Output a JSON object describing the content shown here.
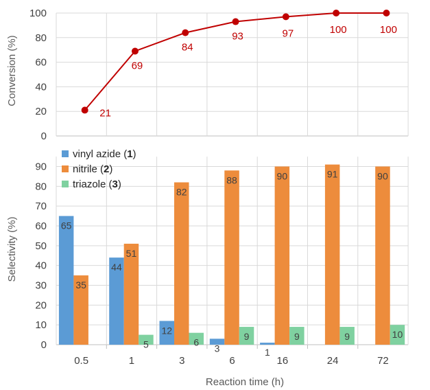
{
  "colors": {
    "conversion": "#c00000",
    "vinyl_azide": "#5b9bd5",
    "nitrile": "#ed8c3c",
    "triazole": "#7fd1a0",
    "bar_label_text": "#404040",
    "grid": "#d9d9d9"
  },
  "chart_data": [
    {
      "type": "line",
      "title": "",
      "xlabel": "",
      "ylabel": "Conversion (%)",
      "ylim": [
        0,
        100
      ],
      "yticks": [
        0,
        20,
        40,
        60,
        80,
        100
      ],
      "grid": true,
      "categories": [
        "0.5",
        "1",
        "3",
        "6",
        "16",
        "24",
        "72"
      ],
      "series": [
        {
          "key": "conversion",
          "values": [
            21,
            69,
            84,
            93,
            97,
            100,
            100
          ]
        }
      ]
    },
    {
      "type": "bar",
      "title": "",
      "xlabel": "Reaction time (h)",
      "ylabel": "Selectivity (%)",
      "ylim": [
        0,
        95
      ],
      "yticks": [
        0,
        10,
        20,
        30,
        40,
        50,
        60,
        70,
        80,
        90
      ],
      "grid": true,
      "legend": "top-left",
      "categories": [
        "0.5",
        "1",
        "3",
        "6",
        "16",
        "24",
        "72"
      ],
      "series": [
        {
          "key": "vinyl_azide",
          "name": "vinyl azide (",
          "name_num": "1",
          "name_close": ")",
          "values": [
            65,
            44,
            12,
            3,
            1,
            null,
            null
          ],
          "labels": [
            "65",
            "44",
            "12",
            "3",
            "1",
            "",
            ""
          ]
        },
        {
          "key": "nitrile",
          "name": "nitrile (",
          "name_num": "2",
          "name_close": ")",
          "values": [
            35,
            51,
            82,
            88,
            90,
            91,
            90
          ],
          "labels": [
            "35",
            "51",
            "82",
            "88",
            "90",
            "91",
            "90"
          ]
        },
        {
          "key": "triazole",
          "name": "triazole (",
          "name_num": "3",
          "name_close": ")",
          "values": [
            null,
            5,
            6,
            9,
            9,
            9,
            10
          ],
          "labels": [
            "",
            "5",
            "6",
            "9",
            "9",
            "9",
            "10"
          ]
        }
      ]
    }
  ]
}
